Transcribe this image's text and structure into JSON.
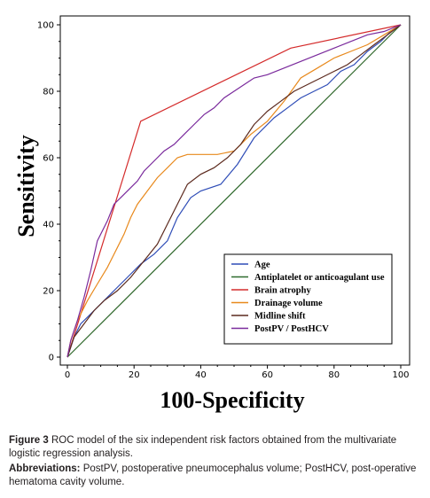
{
  "chart_data": {
    "type": "line",
    "xlabel": "100-Specificity",
    "ylabel": "Sensitivity",
    "xlim": [
      0,
      100
    ],
    "ylim": [
      0,
      100
    ],
    "xticks": [
      "0",
      "20",
      "40",
      "60",
      "80",
      "100"
    ],
    "yticks": [
      "0",
      "20",
      "40",
      "60",
      "80",
      "100"
    ],
    "grid": false,
    "legend_position": "bottom-right",
    "reference_line": {
      "x": [
        0,
        100
      ],
      "y": [
        0,
        100
      ],
      "color": "#f2b8b8"
    },
    "series": [
      {
        "name": "Age",
        "color": "#2f4db7",
        "x": [
          0,
          1,
          2,
          4,
          7,
          10,
          14,
          18,
          22,
          26,
          30,
          33,
          37,
          40,
          46,
          51,
          56,
          62,
          66,
          70,
          74,
          78,
          82,
          86,
          90,
          94,
          97,
          100
        ],
        "y": [
          0,
          3,
          6,
          10,
          13,
          16,
          20,
          24,
          28,
          31,
          35,
          42,
          48,
          50,
          52,
          58,
          66,
          72,
          75,
          78,
          80,
          82,
          86,
          88,
          92,
          95,
          98,
          100
        ]
      },
      {
        "name": "Antiplatelet or anticoagulant use",
        "color": "#2e6b2e",
        "x": [
          0,
          100
        ],
        "y": [
          0,
          100
        ]
      },
      {
        "name": "Brain atrophy",
        "color": "#d42b2b",
        "x": [
          0,
          22,
          67,
          100
        ],
        "y": [
          0,
          71,
          93,
          100
        ]
      },
      {
        "name": "Drainage volume",
        "color": "#e8891c",
        "x": [
          0,
          1,
          3,
          6,
          9,
          12,
          15,
          17,
          19,
          21,
          24,
          27,
          30,
          33,
          36,
          40,
          45,
          50,
          55,
          60,
          65,
          70,
          75,
          80,
          85,
          90,
          95,
          100
        ],
        "y": [
          0,
          5,
          11,
          17,
          22,
          27,
          33,
          37,
          42,
          46,
          50,
          54,
          57,
          60,
          61,
          61,
          61,
          62,
          67,
          71,
          77,
          84,
          87,
          90,
          92,
          94,
          97,
          100
        ]
      },
      {
        "name": "Midline shift",
        "color": "#5c2a1e",
        "x": [
          0,
          2,
          5,
          8,
          11,
          15,
          19,
          23,
          27,
          30,
          33,
          36,
          40,
          44,
          48,
          52,
          56,
          60,
          64,
          68,
          72,
          76,
          80,
          84,
          88,
          92,
          96,
          100
        ],
        "y": [
          0,
          6,
          10,
          14,
          17,
          20,
          24,
          29,
          34,
          40,
          46,
          52,
          55,
          57,
          60,
          64,
          70,
          74,
          77,
          80,
          82,
          84,
          86,
          88,
          91,
          94,
          97,
          100
        ]
      },
      {
        "name": "PostPV / PostHCV",
        "color": "#7a2a9c",
        "x": [
          0,
          1,
          3,
          5,
          7,
          9,
          12,
          14,
          17,
          19,
          21,
          23,
          25,
          27,
          29,
          32,
          35,
          38,
          41,
          44,
          47,
          50,
          53,
          56,
          60,
          65,
          70,
          75,
          80,
          85,
          90,
          95,
          100
        ],
        "y": [
          0,
          5,
          11,
          18,
          26,
          35,
          41,
          46,
          49,
          51,
          53,
          56,
          58,
          60,
          62,
          64,
          67,
          70,
          73,
          75,
          78,
          80,
          82,
          84,
          85,
          87,
          89,
          91,
          93,
          95,
          97,
          98,
          100
        ]
      }
    ]
  },
  "caption": {
    "figure_label": "Figure 3",
    "figure_text": "ROC model of the six independent risk factors obtained from the multivariate logistic regression analysis.",
    "abbrev_label": "Abbreviations:",
    "abbrev_text": "PostPV, postoperative pneumocephalus volume; PostHCV, post-operative hematoma cavity volume."
  }
}
